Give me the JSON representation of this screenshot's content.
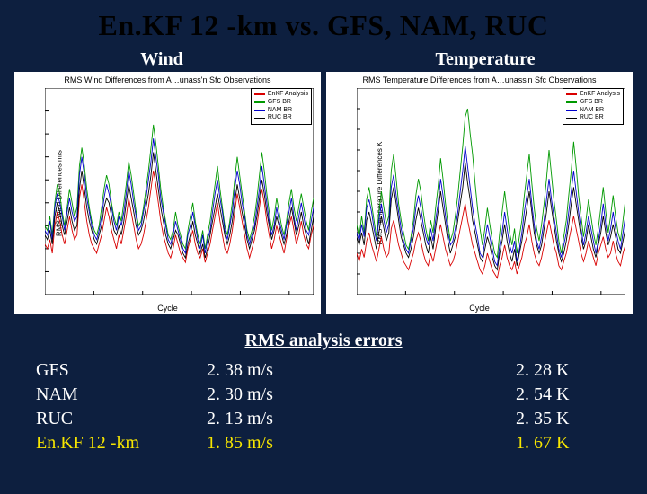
{
  "title": "En.KF 12 -km vs. GFS, NAM, RUC",
  "sub_labels": {
    "left": "Wind",
    "right": "Temperature"
  },
  "rms_heading": "RMS analysis errors",
  "models": [
    "GFS",
    "NAM",
    "RUC",
    "En.KF 12 -km"
  ],
  "wind_rms": [
    "2. 38 m/s",
    "2. 30 m/s",
    "2. 13 m/s",
    "1. 85 m/s"
  ],
  "temp_rms": [
    "2. 28 K",
    "2. 54 K",
    "2. 35 K",
    "1. 67 K"
  ],
  "highlight_row_index": 3,
  "legend_items": [
    {
      "label": "EnKF Analysis",
      "color": "#d90000"
    },
    {
      "label": "GFS BR",
      "color": "#009900"
    },
    {
      "label": "NAM BR",
      "color": "#0000cc"
    },
    {
      "label": "RUC BR",
      "color": "#000000"
    }
  ],
  "chart_common": {
    "background": "#ffffff",
    "axis_color": "#000000",
    "xlabel": "Cycle",
    "xlim": [
      0,
      110
    ],
    "xticks": [
      0,
      20,
      40,
      60,
      80,
      100,
      110
    ],
    "line_width": 0.9,
    "font_family": "Helvetica",
    "font_size_pt": 8
  },
  "wind_chart": {
    "title": "RMS Wind Differences from A…unass'n Sfc Observations",
    "ylabel": "RMS Wind Differences m/s",
    "ylim": [
      0.5,
      5.0
    ],
    "yticks": [
      1.0,
      1.5,
      2.0,
      2.5,
      3.0,
      3.5,
      4.0,
      4.5
    ],
    "series": [
      {
        "color": "#d90000",
        "y": [
          1.6,
          1.5,
          1.7,
          1.4,
          2.0,
          2.3,
          2.1,
          1.8,
          1.6,
          1.9,
          2.2,
          1.9,
          1.7,
          1.8,
          2.6,
          2.9,
          2.5,
          2.1,
          1.8,
          1.6,
          1.5,
          1.4,
          1.6,
          1.8,
          2.1,
          2.4,
          2.2,
          1.9,
          1.7,
          1.5,
          1.8,
          1.6,
          1.9,
          2.2,
          2.6,
          2.3,
          2.0,
          1.7,
          1.5,
          1.6,
          1.8,
          2.1,
          2.4,
          2.8,
          3.2,
          2.9,
          2.5,
          2.1,
          1.8,
          1.6,
          1.4,
          1.3,
          1.5,
          1.8,
          1.6,
          1.4,
          1.3,
          1.2,
          1.5,
          1.7,
          1.9,
          1.6,
          1.4,
          1.3,
          1.5,
          1.2,
          1.4,
          1.6,
          1.9,
          2.2,
          2.5,
          2.1,
          1.8,
          1.5,
          1.4,
          1.6,
          1.9,
          2.3,
          2.7,
          2.4,
          2.1,
          1.8,
          1.5,
          1.3,
          1.5,
          1.7,
          2.0,
          2.4,
          2.8,
          2.5,
          2.1,
          1.8,
          1.5,
          1.7,
          2.0,
          1.8,
          1.6,
          1.4,
          1.7,
          2.0,
          2.2,
          1.9,
          1.6,
          1.8,
          2.1,
          1.8,
          1.6,
          1.5,
          1.8,
          2.0
        ]
      },
      {
        "color": "#009900",
        "y": [
          2.0,
          1.9,
          2.2,
          1.8,
          2.5,
          2.9,
          2.7,
          2.3,
          2.0,
          2.4,
          2.8,
          2.5,
          2.2,
          2.4,
          3.3,
          3.7,
          3.3,
          2.8,
          2.4,
          2.1,
          1.9,
          1.8,
          2.0,
          2.4,
          2.8,
          3.1,
          2.9,
          2.5,
          2.2,
          2.0,
          2.3,
          2.1,
          2.5,
          2.9,
          3.4,
          3.1,
          2.7,
          2.3,
          2.0,
          2.1,
          2.4,
          2.8,
          3.2,
          3.7,
          4.2,
          3.8,
          3.3,
          2.8,
          2.4,
          2.1,
          1.8,
          1.7,
          1.9,
          2.3,
          2.0,
          1.8,
          1.6,
          1.5,
          1.9,
          2.2,
          2.5,
          2.1,
          1.8,
          1.6,
          1.9,
          1.5,
          1.8,
          2.1,
          2.5,
          2.9,
          3.3,
          2.8,
          2.4,
          2.0,
          1.8,
          2.1,
          2.5,
          3.0,
          3.5,
          3.1,
          2.7,
          2.3,
          1.9,
          1.7,
          1.9,
          2.2,
          2.6,
          3.1,
          3.6,
          3.2,
          2.7,
          2.3,
          1.9,
          2.2,
          2.6,
          2.3,
          2.0,
          1.8,
          2.1,
          2.5,
          2.8,
          2.4,
          2.1,
          2.4,
          2.7,
          2.4,
          2.1,
          1.9,
          2.3,
          2.6
        ]
      },
      {
        "color": "#0000cc",
        "y": [
          1.9,
          1.8,
          2.1,
          1.7,
          2.4,
          2.7,
          2.5,
          2.2,
          1.9,
          2.3,
          2.6,
          2.3,
          2.1,
          2.2,
          3.1,
          3.5,
          3.1,
          2.6,
          2.3,
          2.0,
          1.8,
          1.7,
          1.9,
          2.2,
          2.6,
          2.9,
          2.7,
          2.4,
          2.1,
          1.9,
          2.2,
          2.0,
          2.3,
          2.7,
          3.2,
          2.9,
          2.5,
          2.2,
          1.9,
          2.0,
          2.3,
          2.6,
          3.0,
          3.4,
          3.9,
          3.5,
          3.1,
          2.6,
          2.3,
          2.0,
          1.7,
          1.6,
          1.8,
          2.1,
          1.9,
          1.7,
          1.5,
          1.4,
          1.8,
          2.0,
          2.3,
          2.0,
          1.7,
          1.5,
          1.8,
          1.4,
          1.7,
          1.9,
          2.3,
          2.7,
          3.0,
          2.6,
          2.3,
          1.9,
          1.7,
          2.0,
          2.3,
          2.8,
          3.2,
          2.9,
          2.5,
          2.2,
          1.8,
          1.6,
          1.8,
          2.0,
          2.4,
          2.8,
          3.3,
          2.9,
          2.5,
          2.1,
          1.8,
          2.0,
          2.4,
          2.1,
          1.9,
          1.7,
          2.0,
          2.3,
          2.6,
          2.2,
          1.9,
          2.2,
          2.5,
          2.2,
          1.9,
          1.8,
          2.1,
          2.4
        ]
      },
      {
        "color": "#000000",
        "y": [
          1.8,
          1.7,
          1.9,
          1.6,
          2.2,
          2.5,
          2.3,
          2.0,
          1.8,
          2.1,
          2.4,
          2.1,
          1.9,
          2.0,
          2.8,
          3.2,
          2.8,
          2.4,
          2.1,
          1.9,
          1.7,
          1.6,
          1.8,
          2.0,
          2.4,
          2.6,
          2.5,
          2.2,
          1.9,
          1.8,
          2.0,
          1.8,
          2.1,
          2.5,
          2.9,
          2.6,
          2.3,
          2.0,
          1.8,
          1.9,
          2.1,
          2.4,
          2.7,
          3.1,
          3.6,
          3.2,
          2.8,
          2.4,
          2.1,
          1.8,
          1.6,
          1.5,
          1.7,
          1.9,
          1.8,
          1.6,
          1.4,
          1.3,
          1.6,
          1.8,
          2.1,
          1.8,
          1.6,
          1.4,
          1.6,
          1.3,
          1.5,
          1.8,
          2.1,
          2.4,
          2.7,
          2.4,
          2.1,
          1.8,
          1.6,
          1.8,
          2.1,
          2.5,
          2.9,
          2.6,
          2.3,
          2.0,
          1.7,
          1.5,
          1.7,
          1.9,
          2.2,
          2.6,
          3.0,
          2.7,
          2.3,
          2.0,
          1.7,
          1.9,
          2.2,
          2.0,
          1.8,
          1.6,
          1.8,
          2.1,
          2.4,
          2.1,
          1.8,
          2.0,
          2.3,
          2.0,
          1.8,
          1.6,
          1.9,
          2.2
        ]
      }
    ]
  },
  "temp_chart": {
    "title": "RMS Temperature Differences from A…unass'n Sfc Observations",
    "ylabel": "RMS Temperature Differences K",
    "ylim": [
      0.5,
      5.5
    ],
    "yticks": [
      1.0,
      1.5,
      2.0,
      2.5,
      3.0,
      3.5,
      4.0,
      4.5,
      5.0
    ],
    "series": [
      {
        "color": "#d90000",
        "y": [
          1.5,
          1.3,
          1.6,
          1.4,
          1.8,
          2.0,
          1.7,
          1.5,
          1.3,
          1.6,
          1.9,
          1.6,
          1.4,
          1.5,
          2.1,
          2.3,
          2.0,
          1.7,
          1.5,
          1.3,
          1.2,
          1.1,
          1.3,
          1.5,
          1.8,
          2.0,
          1.8,
          1.5,
          1.3,
          1.2,
          1.5,
          1.3,
          1.6,
          1.9,
          2.2,
          1.9,
          1.6,
          1.4,
          1.2,
          1.3,
          1.5,
          1.8,
          2.1,
          2.4,
          2.7,
          2.3,
          2.0,
          1.7,
          1.5,
          1.3,
          1.1,
          1.0,
          1.2,
          1.5,
          1.3,
          1.1,
          1.0,
          0.9,
          1.2,
          1.4,
          1.7,
          1.4,
          1.2,
          1.1,
          1.3,
          1.0,
          1.2,
          1.4,
          1.7,
          1.9,
          2.2,
          1.8,
          1.5,
          1.3,
          1.2,
          1.4,
          1.7,
          2.0,
          2.3,
          2.0,
          1.7,
          1.5,
          1.2,
          1.1,
          1.3,
          1.5,
          1.8,
          2.1,
          2.4,
          2.1,
          1.8,
          1.5,
          1.3,
          1.5,
          1.8,
          1.6,
          1.4,
          1.2,
          1.5,
          1.7,
          1.9,
          1.6,
          1.4,
          1.5,
          1.8,
          1.5,
          1.3,
          1.2,
          1.5,
          1.7
        ]
      },
      {
        "color": "#009900",
        "y": [
          2.2,
          1.9,
          2.4,
          2.0,
          2.8,
          3.1,
          2.7,
          2.3,
          1.9,
          2.5,
          3.0,
          2.6,
          2.2,
          2.4,
          3.5,
          3.9,
          3.3,
          2.7,
          2.3,
          2.0,
          1.7,
          1.6,
          1.9,
          2.3,
          2.9,
          3.3,
          3.0,
          2.5,
          2.1,
          1.8,
          2.3,
          2.0,
          2.6,
          3.1,
          3.8,
          3.3,
          2.7,
          2.2,
          1.8,
          2.0,
          2.4,
          2.9,
          3.5,
          4.1,
          4.8,
          5.0,
          4.4,
          3.9,
          3.2,
          2.6,
          2.1,
          1.7,
          2.1,
          2.6,
          2.2,
          1.8,
          1.5,
          1.4,
          2.0,
          2.5,
          3.0,
          2.5,
          2.0,
          1.7,
          2.1,
          1.5,
          1.9,
          2.3,
          2.9,
          3.4,
          3.9,
          3.2,
          2.6,
          2.1,
          1.8,
          2.2,
          2.7,
          3.3,
          4.0,
          3.4,
          2.8,
          2.3,
          1.8,
          1.5,
          1.9,
          2.3,
          2.9,
          3.5,
          4.2,
          3.6,
          2.9,
          2.4,
          1.9,
          2.3,
          2.8,
          2.4,
          2.0,
          1.7,
          2.1,
          2.6,
          3.1,
          2.5,
          2.0,
          2.4,
          2.9,
          2.4,
          2.0,
          1.8,
          2.3,
          2.8
        ]
      },
      {
        "color": "#0000cc",
        "y": [
          2.0,
          1.8,
          2.2,
          1.9,
          2.6,
          2.8,
          2.5,
          2.1,
          1.8,
          2.3,
          2.7,
          2.3,
          2.0,
          2.2,
          3.1,
          3.4,
          2.9,
          2.5,
          2.1,
          1.8,
          1.6,
          1.5,
          1.8,
          2.1,
          2.6,
          2.9,
          2.6,
          2.2,
          1.9,
          1.7,
          2.1,
          1.8,
          2.3,
          2.7,
          3.3,
          2.9,
          2.4,
          2.0,
          1.7,
          1.8,
          2.1,
          2.5,
          3.0,
          3.5,
          4.1,
          3.6,
          3.1,
          2.6,
          2.2,
          1.9,
          1.5,
          1.4,
          1.8,
          2.2,
          1.9,
          1.6,
          1.3,
          1.2,
          1.7,
          2.0,
          2.5,
          2.1,
          1.7,
          1.5,
          1.8,
          1.3,
          1.6,
          2.0,
          2.5,
          2.9,
          3.3,
          2.7,
          2.2,
          1.8,
          1.6,
          1.9,
          2.3,
          2.8,
          3.3,
          2.8,
          2.4,
          2.0,
          1.6,
          1.4,
          1.7,
          2.0,
          2.5,
          3.0,
          3.5,
          3.0,
          2.5,
          2.1,
          1.7,
          2.0,
          2.4,
          2.1,
          1.8,
          1.5,
          1.8,
          2.2,
          2.7,
          2.2,
          1.8,
          2.1,
          2.5,
          2.1,
          1.8,
          1.6,
          2.0,
          2.4
        ]
      },
      {
        "color": "#000000",
        "y": [
          1.9,
          1.7,
          2.0,
          1.7,
          2.3,
          2.5,
          2.2,
          1.9,
          1.6,
          2.0,
          2.4,
          2.1,
          1.8,
          2.0,
          2.8,
          3.1,
          2.7,
          2.3,
          1.9,
          1.7,
          1.5,
          1.4,
          1.6,
          1.9,
          2.3,
          2.6,
          2.3,
          2.0,
          1.7,
          1.5,
          1.9,
          1.6,
          2.1,
          2.5,
          3.0,
          2.6,
          2.2,
          1.8,
          1.5,
          1.7,
          1.9,
          2.3,
          2.7,
          3.1,
          3.7,
          3.2,
          2.8,
          2.3,
          2.0,
          1.7,
          1.4,
          1.3,
          1.6,
          1.9,
          1.7,
          1.4,
          1.2,
          1.1,
          1.5,
          1.8,
          2.2,
          1.8,
          1.5,
          1.3,
          1.6,
          1.2,
          1.5,
          1.8,
          2.2,
          2.6,
          3.0,
          2.5,
          2.0,
          1.7,
          1.5,
          1.7,
          2.1,
          2.5,
          3.0,
          2.6,
          2.2,
          1.8,
          1.5,
          1.3,
          1.5,
          1.8,
          2.2,
          2.7,
          3.1,
          2.7,
          2.3,
          1.9,
          1.6,
          1.8,
          2.2,
          1.9,
          1.6,
          1.4,
          1.7,
          2.0,
          2.4,
          2.0,
          1.7,
          1.9,
          2.2,
          1.9,
          1.6,
          1.5,
          1.8,
          2.1
        ]
      }
    ]
  }
}
